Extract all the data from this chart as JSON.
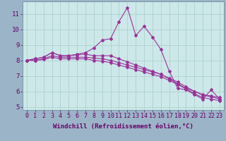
{
  "xlabel": "Windchill (Refroidissement éolien,°C)",
  "background_color": "#cce8e8",
  "line_color": "#993399",
  "grid_color": "#aacccc",
  "x_hours": [
    0,
    1,
    2,
    3,
    4,
    5,
    6,
    7,
    8,
    9,
    10,
    11,
    12,
    13,
    14,
    15,
    16,
    17,
    18,
    19,
    20,
    21,
    22,
    23
  ],
  "main_series": [
    8.0,
    8.1,
    8.2,
    8.5,
    8.3,
    8.3,
    8.4,
    8.5,
    8.8,
    9.3,
    9.4,
    10.5,
    11.4,
    9.6,
    10.2,
    9.5,
    8.7,
    7.3,
    6.2,
    6.1,
    5.8,
    5.5,
    6.1,
    5.5
  ],
  "line2": [
    8.0,
    8.1,
    8.2,
    8.5,
    8.3,
    8.3,
    8.35,
    8.4,
    8.3,
    8.3,
    8.3,
    8.1,
    7.9,
    7.7,
    7.5,
    7.3,
    7.1,
    6.8,
    6.5,
    6.2,
    6.0,
    5.8,
    5.7,
    5.6
  ],
  "line3": [
    8.0,
    8.0,
    8.1,
    8.3,
    8.2,
    8.2,
    8.2,
    8.2,
    8.15,
    8.1,
    8.0,
    7.85,
    7.7,
    7.55,
    7.4,
    7.25,
    7.1,
    6.85,
    6.6,
    6.3,
    6.0,
    5.75,
    5.65,
    5.5
  ],
  "line4": [
    8.0,
    8.0,
    8.05,
    8.2,
    8.1,
    8.1,
    8.1,
    8.1,
    8.0,
    7.95,
    7.85,
    7.7,
    7.55,
    7.4,
    7.25,
    7.1,
    6.95,
    6.7,
    6.45,
    6.15,
    5.85,
    5.6,
    5.5,
    5.4
  ],
  "ylim": [
    4.8,
    11.8
  ],
  "yticks": [
    5,
    6,
    7,
    8,
    9,
    10,
    11
  ],
  "fig_bg": "#9cb4c8",
  "axis_label_color": "#660066",
  "tick_color": "#660066",
  "font_size": 6.5
}
